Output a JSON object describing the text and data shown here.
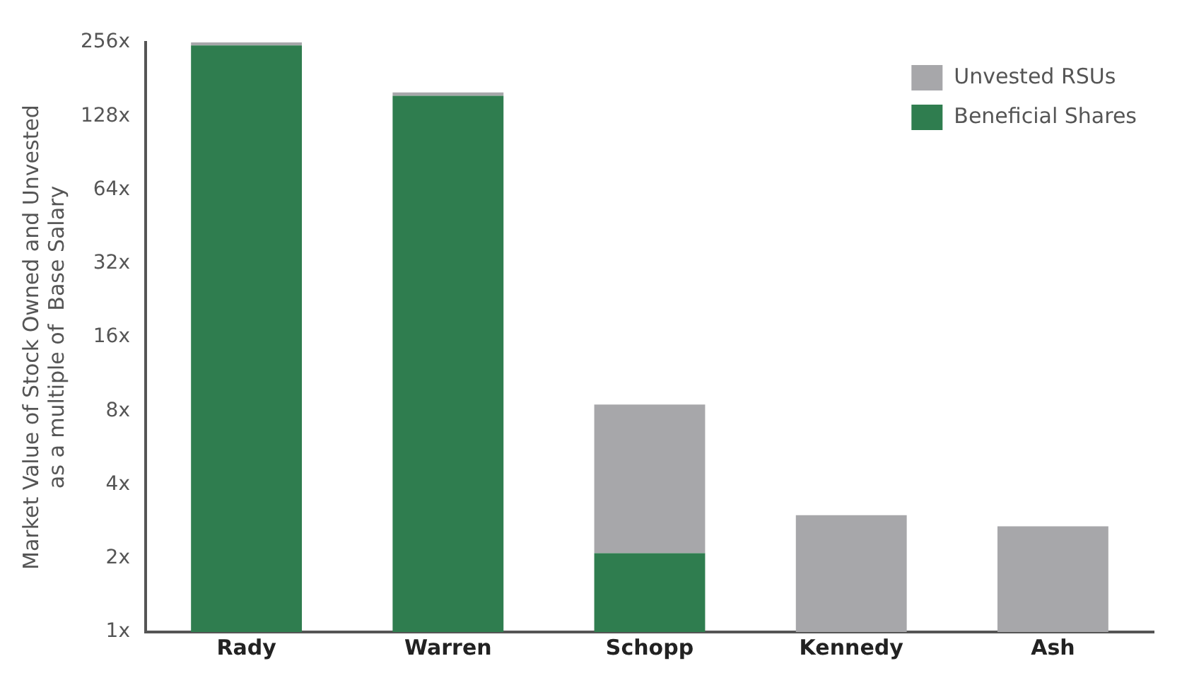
{
  "chart_data": {
    "type": "bar",
    "ylabel": "Market Value of Stock Owned and Unvested\nas a multiple of  Base Salary",
    "categories": [
      "Rady",
      "Warren",
      "Schopp",
      "Kennedy",
      "Ash"
    ],
    "series": [
      {
        "name": "Beneficial Shares",
        "color": "#2f7d4f",
        "values": [
          249,
          155,
          2.1,
          null,
          null
        ]
      },
      {
        "name": "Unvested RSUs",
        "color": "#a7a7aa",
        "values": [
          7,
          5,
          6.4,
          3.0,
          2.7
        ]
      }
    ],
    "stacked": true,
    "log": "y",
    "ylim": [
      1,
      256
    ],
    "yticks": [
      {
        "value": 1,
        "label": "1x"
      },
      {
        "value": 2,
        "label": "2x"
      },
      {
        "value": 4,
        "label": "4x"
      },
      {
        "value": 8,
        "label": "8x"
      },
      {
        "value": 16,
        "label": "16x"
      },
      {
        "value": 32,
        "label": "32x"
      },
      {
        "value": 64,
        "label": "64x"
      },
      {
        "value": 128,
        "label": "128x"
      },
      {
        "value": 256,
        "label": "256x"
      }
    ],
    "grid": false,
    "legend": "top right"
  }
}
